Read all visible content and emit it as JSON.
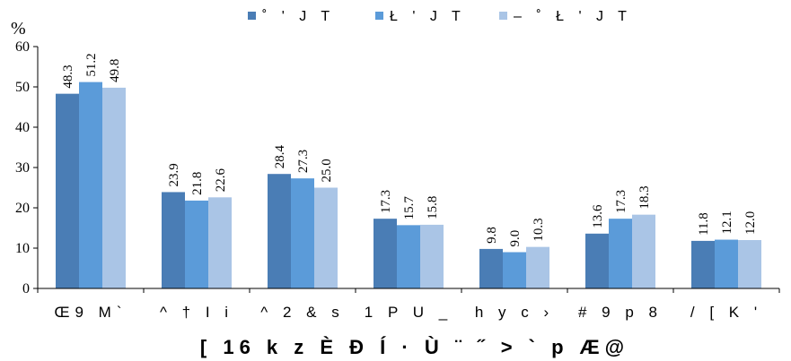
{
  "chart_data": {
    "type": "bar",
    "unit_label": "%",
    "ylim": [
      0,
      60
    ],
    "yticks": [
      0,
      10,
      20,
      30,
      40,
      50,
      60
    ],
    "categories": [
      "Œ9 M`",
      "^ † I i",
      "^ 2 & s",
      "1 P U _",
      "h y c ›",
      "# 9 p 8",
      "/ [ K '"
    ],
    "series": [
      {
        "name": "˚ ' J T",
        "color": "#4a7db5",
        "values": [
          48.3,
          23.9,
          28.4,
          17.3,
          9.8,
          13.6,
          11.8
        ],
        "labels": [
          "48.3",
          "23.9",
          "28.4",
          "17.3",
          "9.8",
          "13.6",
          "11.8"
        ]
      },
      {
        "name": "Ł ' J T",
        "color": "#5b9bd9",
        "values": [
          51.2,
          21.8,
          27.3,
          15.7,
          9.0,
          17.3,
          12.1
        ],
        "labels": [
          "51.2",
          "21.8",
          "27.3",
          "15.7",
          "9.0",
          "17.3",
          "12.1"
        ]
      },
      {
        "name": "– ˚ Ł ' J T",
        "color": "#aac5e6",
        "values": [
          49.8,
          22.6,
          25.0,
          15.8,
          10.3,
          18.3,
          12.0
        ],
        "labels": [
          "49.8",
          "22.6",
          "25.0",
          "15.8",
          "10.3",
          "18.3",
          "12.0"
        ]
      }
    ],
    "xlabel": "[ 16 k z È Đ Í · Ù ¨ ˝ > ` p Æ@",
    "legend_position": "top-center",
    "grid": false
  }
}
